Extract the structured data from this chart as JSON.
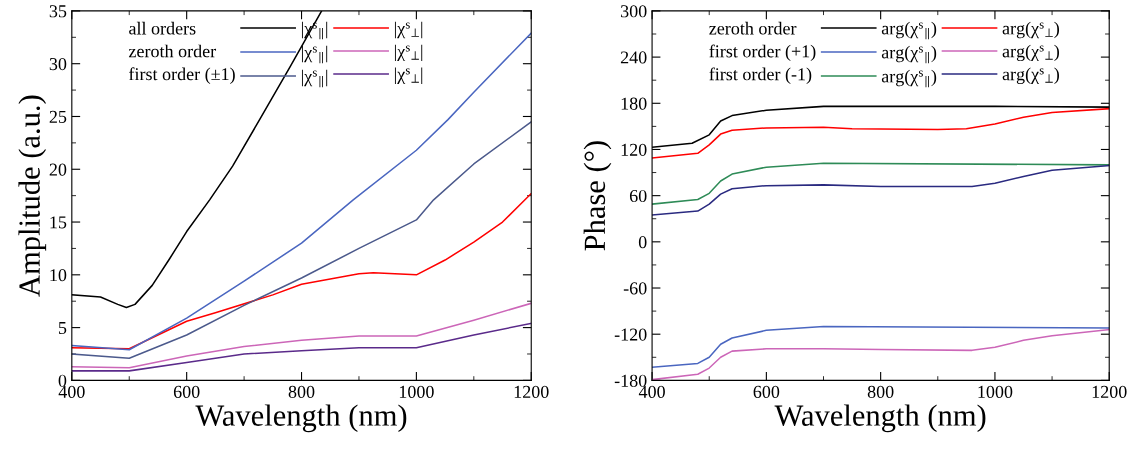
{
  "chart_data": [
    {
      "type": "line",
      "xlabel": "Wavelength (nm)",
      "ylabel": "Amplitude (a.u.)",
      "xlim": [
        400,
        1200
      ],
      "ylim": [
        0,
        35
      ],
      "xticks": [
        400,
        600,
        800,
        1000,
        1200
      ],
      "yticks": [
        0,
        5,
        10,
        15,
        20,
        25,
        30,
        35
      ],
      "grid": false,
      "legend": "top",
      "annotations": [
        "all orders",
        "zeroth order",
        "first order (±1)"
      ],
      "series": [
        {
          "name": "|χ$^{s}$$_{∥}$|",
          "color": "#000000",
          "x": [
            400,
            450,
            480,
            495,
            510,
            540,
            570,
            600,
            640,
            680,
            727,
            780,
            835
          ],
          "values": [
            8.1,
            7.9,
            7.2,
            6.9,
            7.2,
            9.0,
            11.5,
            14.1,
            17.1,
            20.3,
            24.7,
            29.7,
            35
          ]
        },
        {
          "name": "|χ$^{s}$$_{⊥}$|",
          "color": "#ff0000",
          "x": [
            400,
            500,
            600,
            650,
            750,
            800,
            900,
            925,
            1000,
            1050,
            1100,
            1150,
            1200
          ],
          "values": [
            3.1,
            3.0,
            5.6,
            6.4,
            8.1,
            9.1,
            10.1,
            10.2,
            10.0,
            11.4,
            13.1,
            15.0,
            17.7
          ]
        },
        {
          "name": "|χ$^{s}$$_{∥}$|",
          "color": "#4a66c0",
          "x": [
            400,
            500,
            600,
            700,
            800,
            890,
            1000,
            1055,
            1100,
            1200
          ],
          "values": [
            3.3,
            2.9,
            5.9,
            9.4,
            13.0,
            17.1,
            21.8,
            24.7,
            27.3,
            32.9
          ]
        },
        {
          "name": "|χ$^{s}$$_{⊥}$|",
          "color": "#cc66b8",
          "x": [
            400,
            500,
            600,
            700,
            800,
            900,
            1000,
            1100,
            1200
          ],
          "values": [
            1.3,
            1.2,
            2.3,
            3.2,
            3.8,
            4.2,
            4.2,
            5.7,
            7.3
          ]
        },
        {
          "name": "|χ$^{s}$$_{∥}$|",
          "color": "#4c5a8c",
          "x": [
            400,
            500,
            600,
            700,
            800,
            900,
            1000,
            1030,
            1100,
            1200
          ],
          "values": [
            2.5,
            2.1,
            4.3,
            7.1,
            9.7,
            12.5,
            15.2,
            17.1,
            20.5,
            24.5
          ]
        },
        {
          "name": "|χ$^{s}$$_{⊥}$|",
          "color": "#5a2a8a",
          "x": [
            400,
            500,
            600,
            700,
            800,
            900,
            1000,
            1100,
            1200
          ],
          "values": [
            0.9,
            0.9,
            1.7,
            2.5,
            2.8,
            3.1,
            3.1,
            4.3,
            5.4
          ]
        }
      ]
    },
    {
      "type": "line",
      "xlabel": "Wavelength (nm)",
      "ylabel": "Phase (°)",
      "xlim": [
        400,
        1200
      ],
      "ylim": [
        -180,
        300
      ],
      "xticks": [
        400,
        600,
        800,
        1000,
        1200
      ],
      "yticks": [
        -180,
        -120,
        -60,
        0,
        60,
        120,
        180,
        240,
        300
      ],
      "grid": false,
      "legend": "top",
      "annotations": [
        "zeroth order",
        "first order (+1)",
        "first order (-1)"
      ],
      "series": [
        {
          "name": "arg(χ$^{s}$$_{∥}$)",
          "color": "#000000",
          "x": [
            400,
            470,
            500,
            520,
            540,
            600,
            700,
            800,
            1000,
            1200
          ],
          "values": [
            123,
            128,
            139,
            157,
            164,
            171,
            176,
            176,
            176,
            175
          ]
        },
        {
          "name": "arg(χ$^{s}$$_{⊥}$)",
          "color": "#ff0000",
          "x": [
            400,
            480,
            500,
            520,
            540,
            600,
            700,
            750,
            900,
            950,
            1000,
            1050,
            1100,
            1200
          ],
          "values": [
            109,
            115,
            126,
            140,
            145,
            148,
            149,
            147,
            146,
            147,
            153,
            162,
            168,
            173
          ]
        },
        {
          "name": "arg(χ$^{s}$$_{∥}$)",
          "color": "#4a66c0",
          "x": [
            400,
            480,
            500,
            520,
            540,
            600,
            700,
            1200
          ],
          "values": [
            -163,
            -158,
            -150,
            -133,
            -125,
            -115,
            -110,
            -112
          ]
        },
        {
          "name": "arg(χ$^{s}$$_{⊥}$)",
          "color": "#cc66b8",
          "x": [
            400,
            480,
            500,
            520,
            540,
            600,
            700,
            800,
            960,
            1000,
            1050,
            1100,
            1200
          ],
          "values": [
            -179,
            -172,
            -164,
            -150,
            -142,
            -139,
            -139,
            -140,
            -141,
            -137,
            -128,
            -122,
            -114
          ]
        },
        {
          "name": "arg(χ$^{s}$$_{∥}$)",
          "color": "#2e8b57",
          "x": [
            400,
            480,
            500,
            520,
            540,
            600,
            700,
            1200
          ],
          "values": [
            49,
            55,
            63,
            79,
            88,
            97,
            102,
            100
          ]
        },
        {
          "name": "arg(χ$^{s}$$_{⊥}$)",
          "color": "#2a2a80",
          "x": [
            400,
            480,
            500,
            520,
            540,
            600,
            700,
            800,
            960,
            1000,
            1050,
            1100,
            1200
          ],
          "values": [
            35,
            40,
            49,
            62,
            69,
            73,
            74,
            72,
            72,
            76,
            85,
            93,
            99
          ]
        }
      ]
    }
  ]
}
